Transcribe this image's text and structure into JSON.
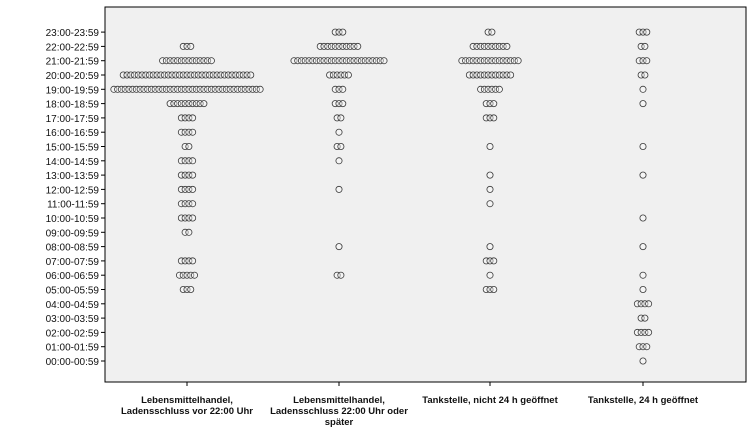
{
  "chart_data": {
    "type": "scatter",
    "title": "",
    "xlabel": "",
    "ylabel": "",
    "categories": [
      "Lebensmittelhandel,\nLadensschluss vor 22:00 Uhr",
      "Lebensmittelhandel,\nLadensschluss 22:00 Uhr oder\nspäter",
      "Tankstelle, nicht 24 h geöffnet",
      "Tankstelle, 24 h geöffnet"
    ],
    "y_categories": [
      "00:00-00:59",
      "01:00-01:59",
      "02:00-02:59",
      "03:00-03:59",
      "04:00-04:59",
      "05:00-05:59",
      "06:00-06:59",
      "07:00-07:59",
      "08:00-08:59",
      "09:00-09:59",
      "10:00-10:59",
      "11:00-11:59",
      "12:00-12:59",
      "13:00-13:59",
      "14:00-14:59",
      "15:00-15:59",
      "16:00-16:59",
      "17:00-17:59",
      "18:00-18:59",
      "19:00-19:59",
      "20:00-20:59",
      "21:00-21:59",
      "22:00-22:59",
      "23:00-23:59"
    ],
    "marker": "open circle",
    "stacking": "horizontal dot stacks centered on each category",
    "grid": false,
    "legend": "none",
    "series": [
      {
        "category": "Lebensmittelhandel,\nLadensschluss vor 22:00 Uhr",
        "counts": [
          0,
          0,
          0,
          0,
          0,
          3,
          5,
          4,
          0,
          2,
          4,
          4,
          4,
          4,
          4,
          2,
          4,
          4,
          10,
          40,
          35,
          14,
          3,
          0
        ]
      },
      {
        "category": "Lebensmittelhandel,\nLadensschluss 22:00 Uhr oder\nspäter",
        "counts": [
          0,
          0,
          0,
          0,
          0,
          0,
          2,
          0,
          1,
          0,
          0,
          0,
          1,
          0,
          1,
          2,
          1,
          2,
          3,
          3,
          6,
          25,
          11,
          3
        ]
      },
      {
        "category": "Tankstelle, nicht 24 h geöffnet",
        "counts": [
          0,
          0,
          0,
          0,
          0,
          3,
          1,
          3,
          1,
          0,
          0,
          1,
          1,
          1,
          0,
          1,
          0,
          3,
          3,
          6,
          12,
          16,
          10,
          2
        ]
      },
      {
        "category": "Tankstelle, 24 h geöffnet",
        "counts": [
          1,
          3,
          4,
          2,
          4,
          1,
          1,
          0,
          1,
          0,
          1,
          0,
          0,
          1,
          0,
          1,
          0,
          0,
          1,
          1,
          2,
          3,
          2,
          3
        ]
      }
    ]
  },
  "colors": {
    "plot_background": "#f0f0f0",
    "frame": "#000000",
    "marker_stroke": "#3a3a3a",
    "marker_fill": "#ffffff",
    "text": "#111111"
  }
}
